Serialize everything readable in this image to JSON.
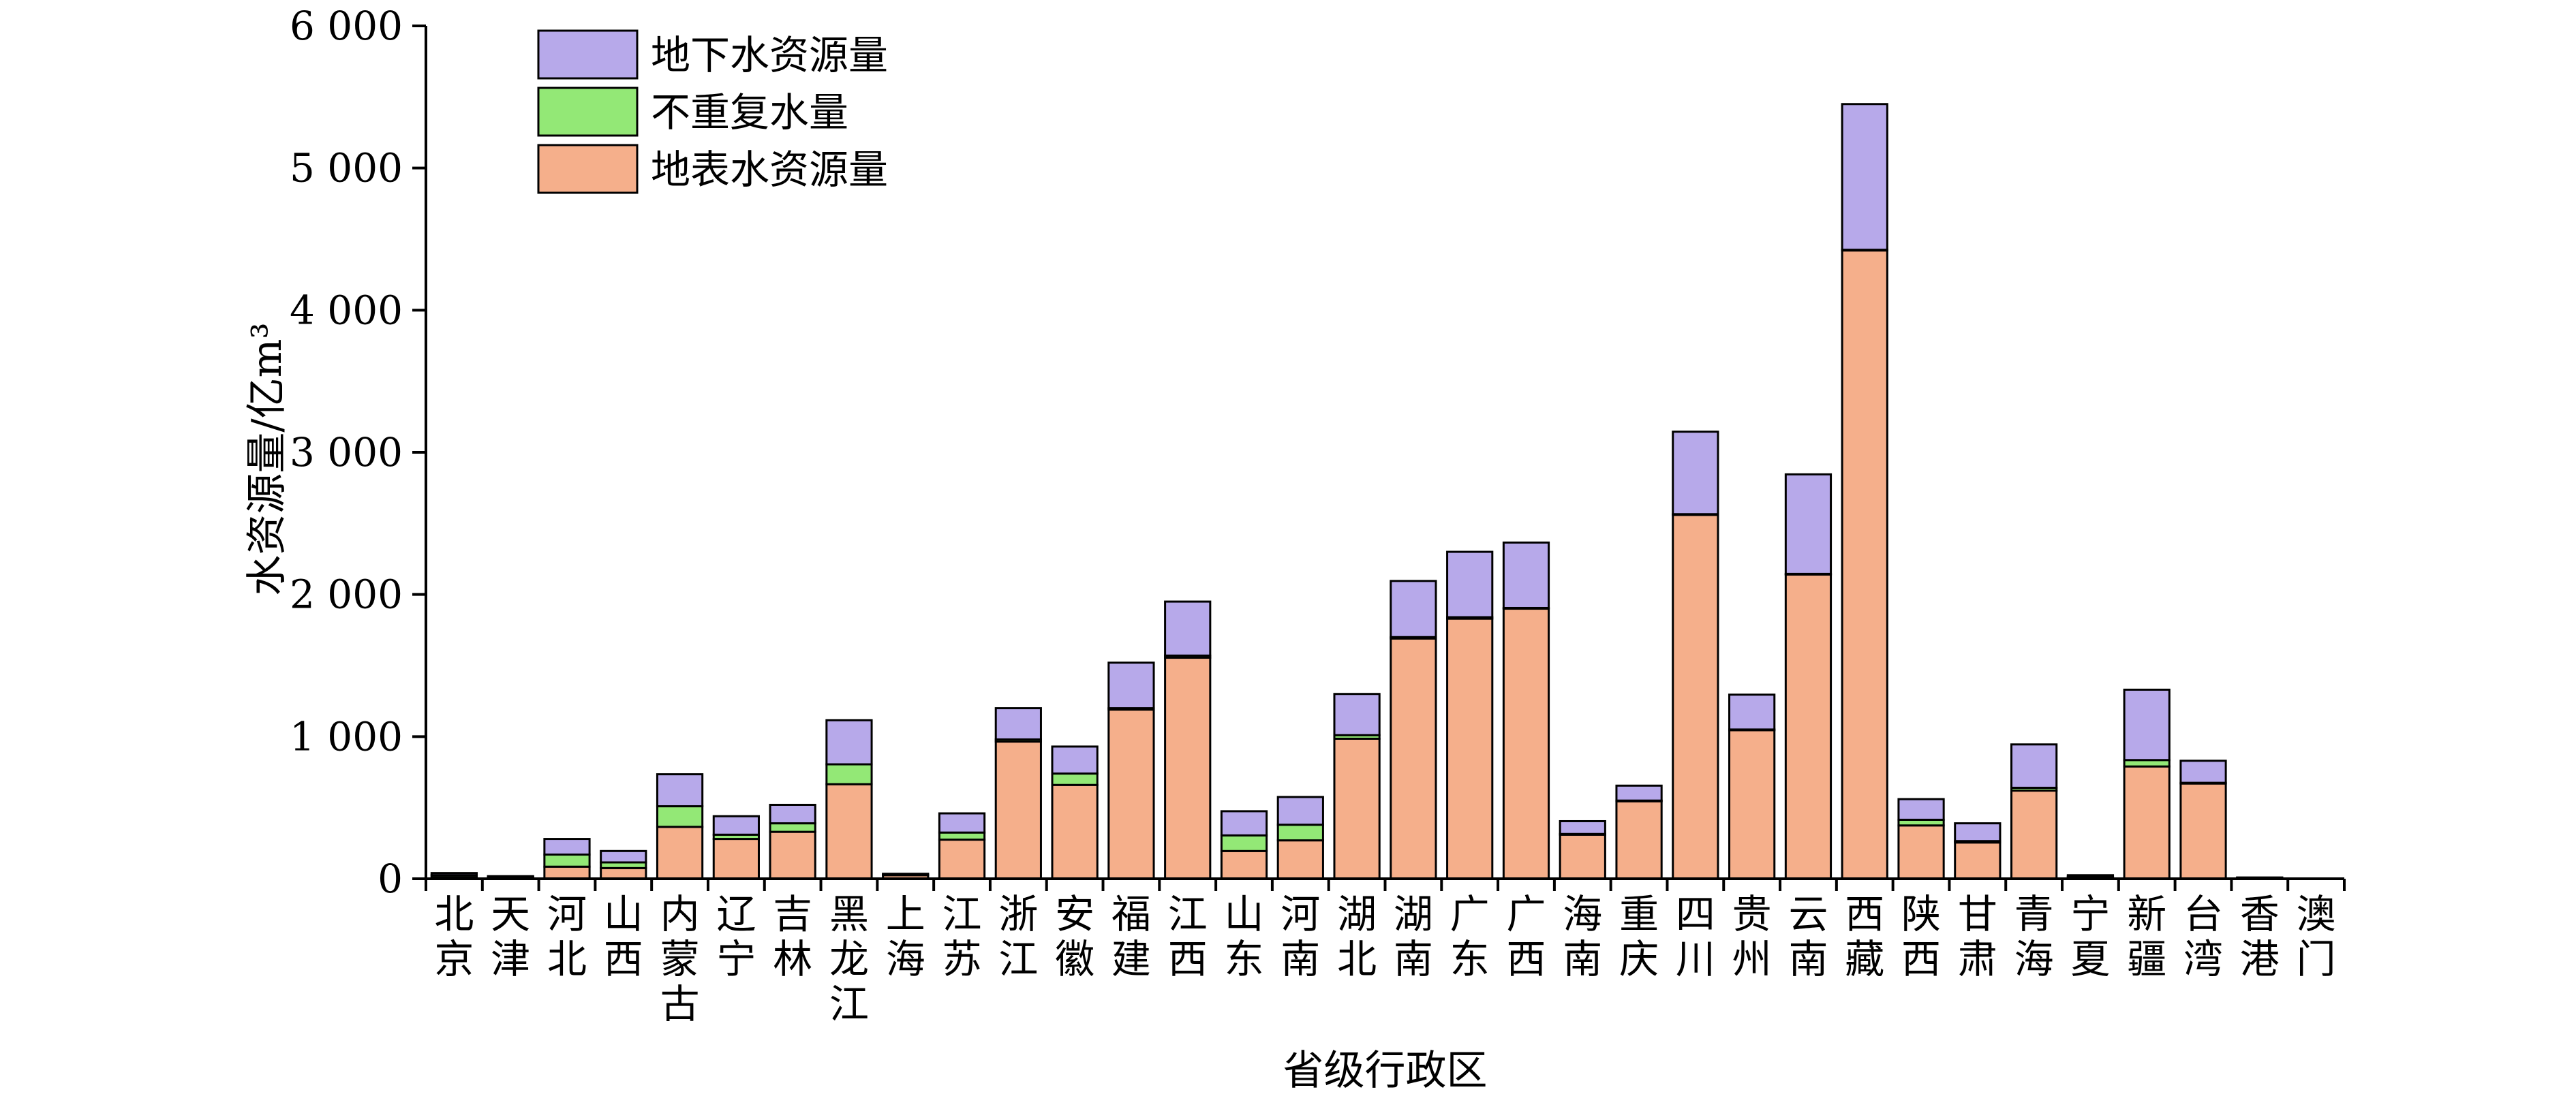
{
  "chart_data": {
    "type": "bar",
    "stacked": true,
    "xlabel": "省级行政区",
    "ylabel": "水资源量/亿m³",
    "ylim": [
      0,
      6000
    ],
    "yticks": [
      0,
      1000,
      2000,
      3000,
      4000,
      5000,
      6000
    ],
    "ytick_labels": [
      "0",
      "1 000",
      "2 000",
      "3 000",
      "4 000",
      "5 000",
      "6 000"
    ],
    "legend_position": "top-left",
    "categories": [
      "北京",
      "天津",
      "河北",
      "山西",
      "内蒙古",
      "辽宁",
      "吉林",
      "黑龙江",
      "上海",
      "江苏",
      "浙江",
      "安徽",
      "福建",
      "江西",
      "山东",
      "河南",
      "湖北",
      "湖南",
      "广东",
      "广西",
      "海南",
      "重庆",
      "四川",
      "贵州",
      "云南",
      "西藏",
      "陕西",
      "甘肃",
      "青海",
      "宁夏",
      "新疆",
      "台湾",
      "香港",
      "澳门"
    ],
    "series": [
      {
        "name": "地表水资源量",
        "color": "#F5AF8B",
        "values": [
          10,
          8,
          85,
          75,
          365,
          280,
          330,
          665,
          25,
          275,
          965,
          660,
          1190,
          1555,
          195,
          270,
          985,
          1690,
          1830,
          1900,
          310,
          545,
          2560,
          1045,
          2140,
          4420,
          375,
          255,
          620,
          10,
          790,
          670,
          4,
          1
        ]
      },
      {
        "name": "不重复水量",
        "color": "#93E876",
        "values": [
          15,
          4,
          85,
          40,
          145,
          30,
          60,
          140,
          3,
          50,
          15,
          80,
          10,
          15,
          110,
          110,
          25,
          10,
          10,
          5,
          5,
          5,
          5,
          5,
          5,
          5,
          40,
          10,
          20,
          5,
          45,
          5,
          1,
          0
        ]
      },
      {
        "name": "地下水资源量",
        "color": "#B7A9EA",
        "values": [
          15,
          6,
          110,
          80,
          225,
          130,
          130,
          310,
          7,
          135,
          220,
          190,
          320,
          380,
          170,
          195,
          290,
          395,
          460,
          460,
          90,
          105,
          580,
          245,
          700,
          1025,
          145,
          125,
          305,
          10,
          495,
          155,
          4,
          1
        ]
      }
    ]
  }
}
